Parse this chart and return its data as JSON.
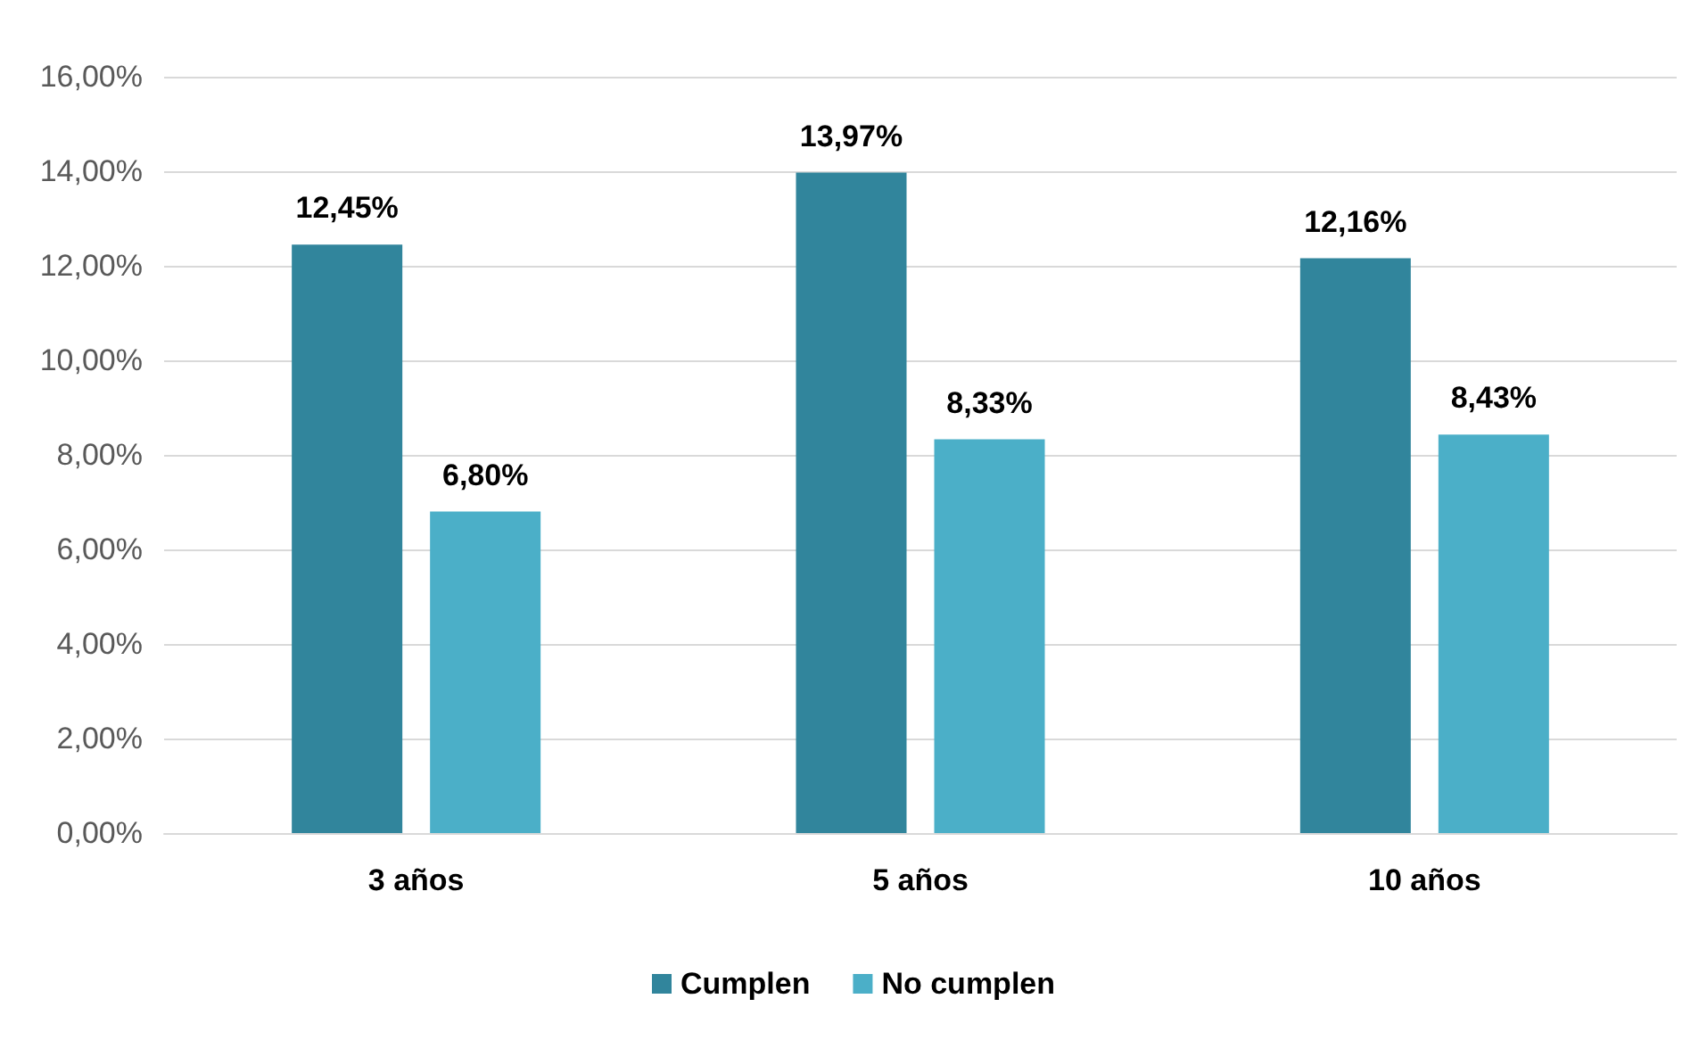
{
  "chart_data": {
    "type": "bar",
    "categories": [
      "3 años",
      "5 años",
      "10 años"
    ],
    "series": [
      {
        "name": "Cumplen",
        "color": "#31859c",
        "values": [
          12.45,
          13.97,
          12.16
        ],
        "value_labels": [
          "12,45%",
          "13,97%",
          "12,16%"
        ]
      },
      {
        "name": "No cumplen",
        "color": "#4bafc8",
        "values": [
          6.8,
          8.33,
          8.43
        ],
        "value_labels": [
          "6,80%",
          "8,33%",
          "8,43%"
        ]
      }
    ],
    "ylim": [
      0,
      16
    ],
    "yticks": [
      {
        "value": 0,
        "label": "0,00%"
      },
      {
        "value": 2,
        "label": "2,00%"
      },
      {
        "value": 4,
        "label": "4,00%"
      },
      {
        "value": 6,
        "label": "6,00%"
      },
      {
        "value": 8,
        "label": "8,00%"
      },
      {
        "value": 10,
        "label": "10,00%"
      },
      {
        "value": 12,
        "label": "12,00%"
      },
      {
        "value": 14,
        "label": "14,00%"
      },
      {
        "value": 16,
        "label": "16,00%"
      }
    ],
    "grid": "y",
    "legend": "bottom"
  }
}
